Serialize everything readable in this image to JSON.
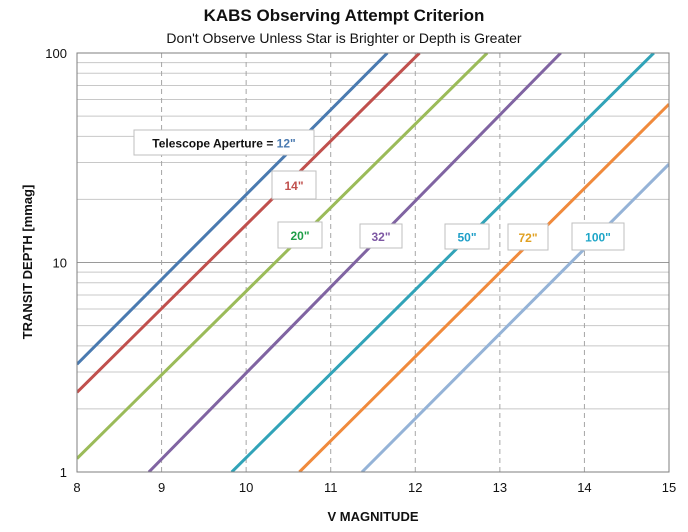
{
  "chart_data": {
    "type": "line",
    "title": "KABS Observing  Attempt Criterion",
    "subtitle": "Don't Observe Unless Star is Brighter or Depth is Greater",
    "xlabel": "V MAGNITUDE",
    "ylabel": "TRANSIT DEPTH [mmag]",
    "xlim": [
      8,
      15
    ],
    "ylim": [
      1,
      100
    ],
    "yscale": "log",
    "x_ticks": [
      "8",
      "9",
      "10",
      "11",
      "12",
      "13",
      "14",
      "15"
    ],
    "y_ticks": [
      "1",
      "10",
      "100"
    ],
    "grid": "major and minor horizontal, dashed vertical",
    "series": [
      {
        "aperture": "12\"",
        "color": "#4a7ab0",
        "points": [
          [
            8,
            3.27
          ],
          [
            11.67,
            100
          ]
        ]
      },
      {
        "aperture": "14\"",
        "color": "#c0504d",
        "points": [
          [
            8,
            2.4
          ],
          [
            12.05,
            100
          ]
        ]
      },
      {
        "aperture": "20\"",
        "color": "#9bbb59",
        "points": [
          [
            8,
            1.16
          ],
          [
            12.85,
            100
          ]
        ]
      },
      {
        "aperture": "32\"",
        "color": "#8064a2",
        "points": [
          [
            8.85,
            1
          ],
          [
            13.72,
            100
          ]
        ]
      },
      {
        "aperture": "50\"",
        "color": "#31a3b8",
        "points": [
          [
            9.83,
            1
          ],
          [
            14.82,
            100
          ]
        ]
      },
      {
        "aperture": "72\"",
        "color": "#f08a3c",
        "points": [
          [
            10.63,
            1
          ],
          [
            15,
            57
          ]
        ]
      },
      {
        "aperture": "100\"",
        "color": "#95b3d7",
        "points": [
          [
            11.37,
            1
          ],
          [
            15,
            29.5
          ]
        ]
      }
    ],
    "annotations": [
      {
        "prefix": "Telescope Aperture = ",
        "text": "12\"",
        "color": "#4a7ab0"
      },
      {
        "text": "14\"",
        "color": "#c0504d"
      },
      {
        "text": "20\"",
        "color": "#1e9e47"
      },
      {
        "text": "32\"",
        "color": "#7d57a3"
      },
      {
        "text": "50\"",
        "color": "#1f9fc8"
      },
      {
        "text": "72\"",
        "color": "#e0a020"
      },
      {
        "text": "100\"",
        "color": "#1fa6c8"
      }
    ]
  }
}
